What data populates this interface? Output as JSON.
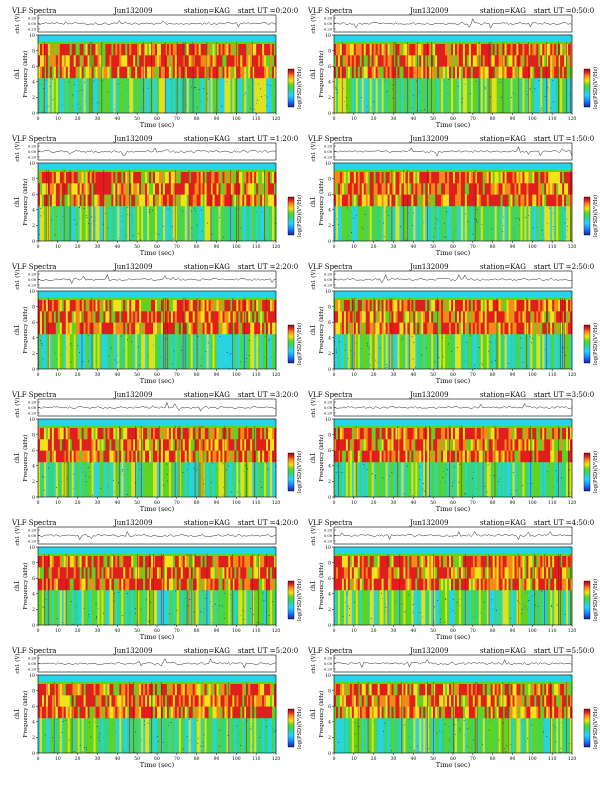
{
  "figure_title": "VLF Spectra",
  "colors": {
    "spectrogram_scale": [
      "#0b1fae",
      "#1e7bff",
      "#21d4ff",
      "#2fd58a",
      "#5fd321",
      "#f2e41b",
      "#f28b1a",
      "#e01e1e",
      "#8a0e1a"
    ],
    "cutoff_band": "#26d6e8",
    "background_band": "#1f6fd0"
  },
  "axis_labels": {
    "channel": "ch1",
    "voltage": "ch1 (V)",
    "frequency": "Frequency (kHz)",
    "time": "Time (sec)",
    "colorbar": "log(PSD)(V²/Hz)"
  },
  "chart_data": [
    {
      "type": "heatmap",
      "date": "Jun132009",
      "station": "station=KAG",
      "start_ut": "start UT =0:20:0",
      "x": {
        "label": "Time (sec)",
        "range": [
          0,
          120
        ],
        "ticks": [
          0,
          10,
          20,
          30,
          40,
          50,
          60,
          70,
          80,
          90,
          100,
          110,
          120
        ]
      },
      "y": {
        "label": "Frequency (kHz)",
        "range": [
          0,
          10
        ],
        "ticks": [
          0,
          2,
          4,
          6,
          8,
          10
        ]
      },
      "trace": {
        "label": "ch1 (V)",
        "ticks": [
          "0.20",
          "0.00",
          "-0.20"
        ]
      },
      "colorbar": {
        "label": "log(PSD)(V²/Hz)"
      }
    },
    {
      "type": "heatmap",
      "date": "Jun132009",
      "station": "station=KAG",
      "start_ut": "start UT =0:50:0",
      "x": {
        "label": "Time (sec)",
        "range": [
          0,
          120
        ],
        "ticks": [
          0,
          10,
          20,
          30,
          40,
          50,
          60,
          70,
          80,
          90,
          100,
          110,
          120
        ]
      },
      "y": {
        "label": "Frequency (kHz)",
        "range": [
          0,
          10
        ],
        "ticks": [
          0,
          2,
          4,
          6,
          8,
          10
        ]
      },
      "trace": {
        "label": "ch1 (V)",
        "ticks": [
          "0.20",
          "0.00",
          "-0.20"
        ]
      },
      "colorbar": {
        "label": "log(PSD)(V²/Hz)"
      }
    },
    {
      "type": "heatmap",
      "date": "Jun132009",
      "station": "station=KAG",
      "start_ut": "start UT =1:20:0",
      "x": {
        "label": "Time (sec)",
        "range": [
          0,
          120
        ],
        "ticks": [
          0,
          10,
          20,
          30,
          40,
          50,
          60,
          70,
          80,
          90,
          100,
          110,
          120
        ]
      },
      "y": {
        "label": "Frequency (kHz)",
        "range": [
          0,
          10
        ],
        "ticks": [
          0,
          2,
          4,
          6,
          8,
          10
        ]
      },
      "trace": {
        "label": "ch1 (V)",
        "ticks": [
          "0.20",
          "0.00",
          "-0.20"
        ]
      },
      "colorbar": {
        "label": "log(PSD)(V²/Hz)"
      }
    },
    {
      "type": "heatmap",
      "date": "Jun132009",
      "station": "station=KAG",
      "start_ut": "start UT =1:50:0",
      "x": {
        "label": "Time (sec)",
        "range": [
          0,
          120
        ],
        "ticks": [
          0,
          10,
          20,
          30,
          40,
          50,
          60,
          70,
          80,
          90,
          100,
          110,
          120
        ]
      },
      "y": {
        "label": "Frequency (kHz)",
        "range": [
          0,
          10
        ],
        "ticks": [
          0,
          2,
          4,
          6,
          8,
          10
        ]
      },
      "trace": {
        "label": "ch1 (V)",
        "ticks": [
          "0.20",
          "0.00",
          "-0.20"
        ]
      },
      "colorbar": {
        "label": "log(PSD)(V²/Hz)"
      }
    },
    {
      "type": "heatmap",
      "date": "Jun132009",
      "station": "station=KAG",
      "start_ut": "start UT =2:20:0",
      "x": {
        "label": "Time (sec)",
        "range": [
          0,
          120
        ],
        "ticks": [
          0,
          10,
          20,
          30,
          40,
          50,
          60,
          70,
          80,
          90,
          100,
          110,
          120
        ]
      },
      "y": {
        "label": "Frequency (kHz)",
        "range": [
          0,
          10
        ],
        "ticks": [
          0,
          2,
          4,
          6,
          8,
          10
        ]
      },
      "trace": {
        "label": "ch1 (V)",
        "ticks": [
          "0.20",
          "0.00",
          "-0.20"
        ]
      },
      "colorbar": {
        "label": "log(PSD)(V²/Hz)"
      }
    },
    {
      "type": "heatmap",
      "date": "Jun132009",
      "station": "station=KAG",
      "start_ut": "start UT =2:50:0",
      "x": {
        "label": "Time (sec)",
        "range": [
          0,
          120
        ],
        "ticks": [
          0,
          10,
          20,
          30,
          40,
          50,
          60,
          70,
          80,
          90,
          100,
          110,
          120
        ]
      },
      "y": {
        "label": "Frequency (kHz)",
        "range": [
          0,
          10
        ],
        "ticks": [
          0,
          2,
          4,
          6,
          8,
          10
        ]
      },
      "trace": {
        "label": "ch1 (V)",
        "ticks": [
          "0.20",
          "0.00",
          "-0.20"
        ]
      },
      "colorbar": {
        "label": "log(PSD)(V²/Hz)"
      }
    },
    {
      "type": "heatmap",
      "date": "Jun132009",
      "station": "station=KAG",
      "start_ut": "start UT =3:20:0",
      "x": {
        "label": "Time (sec)",
        "range": [
          0,
          120
        ],
        "ticks": [
          0,
          10,
          20,
          30,
          40,
          50,
          60,
          70,
          80,
          90,
          100,
          110,
          120
        ]
      },
      "y": {
        "label": "Frequency (kHz)",
        "range": [
          0,
          10
        ],
        "ticks": [
          0,
          2,
          4,
          6,
          8,
          10
        ]
      },
      "trace": {
        "label": "ch1 (V)",
        "ticks": [
          "0.20",
          "0.00",
          "-0.20"
        ]
      },
      "colorbar": {
        "label": "log(PSD)(V²/Hz)"
      }
    },
    {
      "type": "heatmap",
      "date": "Jun132009",
      "station": "station=KAG",
      "start_ut": "start UT =3:50:0",
      "x": {
        "label": "Time (sec)",
        "range": [
          0,
          120
        ],
        "ticks": [
          0,
          10,
          20,
          30,
          40,
          50,
          60,
          70,
          80,
          90,
          100,
          110,
          120
        ]
      },
      "y": {
        "label": "Frequency (kHz)",
        "range": [
          0,
          10
        ],
        "ticks": [
          0,
          2,
          4,
          6,
          8,
          10
        ]
      },
      "trace": {
        "label": "ch1 (V)",
        "ticks": [
          "0.20",
          "0.00",
          "-0.20"
        ]
      },
      "colorbar": {
        "label": "log(PSD)(V²/Hz)"
      }
    },
    {
      "type": "heatmap",
      "date": "Jun132009",
      "station": "station=KAG",
      "start_ut": "start UT =4:20:0",
      "x": {
        "label": "Time (sec)",
        "range": [
          0,
          120
        ],
        "ticks": [
          0,
          10,
          20,
          30,
          40,
          50,
          60,
          70,
          80,
          90,
          100,
          110,
          120
        ]
      },
      "y": {
        "label": "Frequency (kHz)",
        "range": [
          0,
          10
        ],
        "ticks": [
          0,
          2,
          4,
          6,
          8,
          10
        ]
      },
      "trace": {
        "label": "ch1 (V)",
        "ticks": [
          "0.20",
          "0.00",
          "-0.20"
        ]
      },
      "colorbar": {
        "label": "log(PSD)(V²/Hz)"
      }
    },
    {
      "type": "heatmap",
      "date": "Jun132009",
      "station": "station=KAG",
      "start_ut": "start UT =4:50:0",
      "x": {
        "label": "Time (sec)",
        "range": [
          0,
          120
        ],
        "ticks": [
          0,
          10,
          20,
          30,
          40,
          50,
          60,
          70,
          80,
          90,
          100,
          110,
          120
        ]
      },
      "y": {
        "label": "Frequency (kHz)",
        "range": [
          0,
          10
        ],
        "ticks": [
          0,
          2,
          4,
          6,
          8,
          10
        ]
      },
      "trace": {
        "label": "ch1 (V)",
        "ticks": [
          "0.20",
          "0.00",
          "-0.20"
        ]
      },
      "colorbar": {
        "label": "log(PSD)(V²/Hz)"
      }
    },
    {
      "type": "heatmap",
      "date": "Jun132009",
      "station": "station=KAG",
      "start_ut": "start UT =5:20:0",
      "x": {
        "label": "Time (sec)",
        "range": [
          0,
          120
        ],
        "ticks": [
          0,
          10,
          20,
          30,
          40,
          50,
          60,
          70,
          80,
          90,
          100,
          110,
          120
        ]
      },
      "y": {
        "label": "Frequency (kHz)",
        "range": [
          0,
          10
        ],
        "ticks": [
          0,
          2,
          4,
          6,
          8,
          10
        ]
      },
      "trace": {
        "label": "ch1 (V)",
        "ticks": [
          "0.20",
          "0.00",
          "-0.20"
        ]
      },
      "colorbar": {
        "label": "log(PSD)(V²/Hz)"
      }
    },
    {
      "type": "heatmap",
      "date": "Jun132009",
      "station": "station=KAG",
      "start_ut": "start UT =5:50:0",
      "x": {
        "label": "Time (sec)",
        "range": [
          0,
          120
        ],
        "ticks": [
          0,
          10,
          20,
          30,
          40,
          50,
          60,
          70,
          80,
          90,
          100,
          110,
          120
        ]
      },
      "y": {
        "label": "Frequency (kHz)",
        "range": [
          0,
          10
        ],
        "ticks": [
          0,
          2,
          4,
          6,
          8,
          10
        ]
      },
      "trace": {
        "label": "ch1 (V)",
        "ticks": [
          "0.20",
          "0.00",
          "-0.20"
        ]
      },
      "colorbar": {
        "label": "log(PSD)(V²/Hz)"
      }
    }
  ]
}
